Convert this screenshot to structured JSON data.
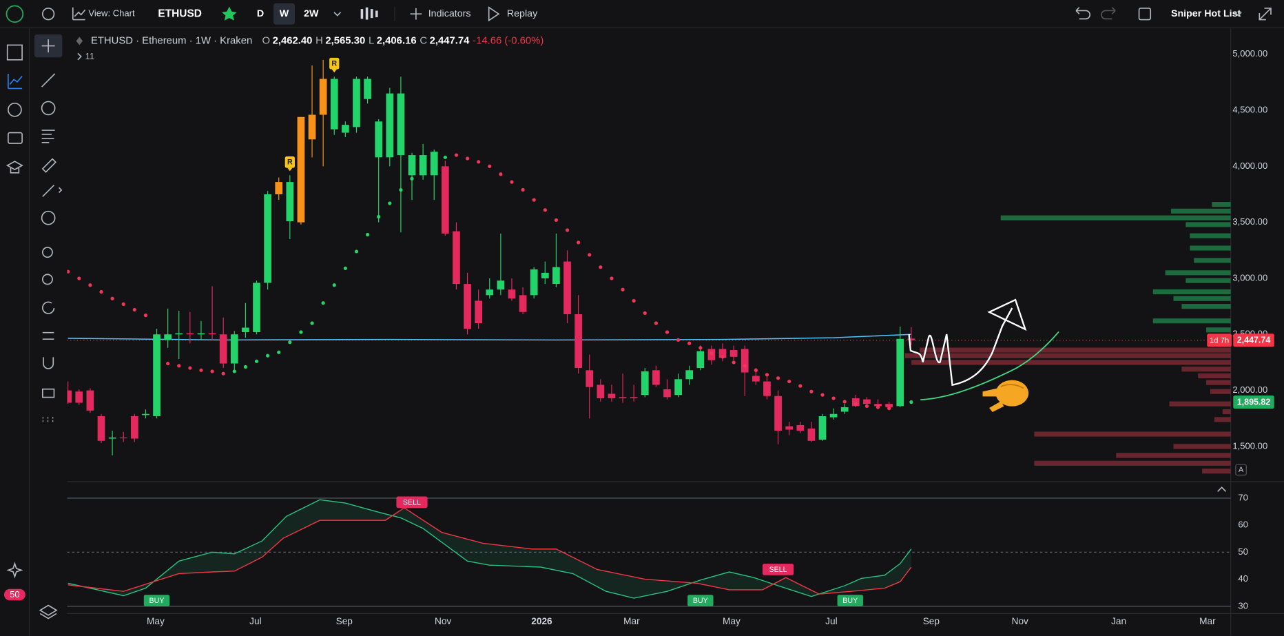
{
  "toolbar": {
    "view": "View: Chart",
    "symbol": "ETHUSD",
    "intervals": [
      "D",
      "W",
      "2W"
    ],
    "indicators": "Indicators",
    "replay": "Replay",
    "watchlist": "Sniper Hot List"
  },
  "sidebar": {
    "badge": "50"
  },
  "legend": {
    "title": "ETHUSD · Ethereum · 1W · Kraken",
    "o_label": "O",
    "o": "2,462.40",
    "h_label": "H",
    "h": "2,565.30",
    "l_label": "L",
    "l": "2,406.16",
    "c_label": "C",
    "c": "2,447.74",
    "change": "-14.66 (-0.60%)",
    "indicator_count": "11"
  },
  "chart_data": [
    {
      "type": "candlestick",
      "x": [
        1,
        2,
        3,
        4,
        5,
        6,
        7,
        8,
        9,
        10,
        11,
        12,
        13,
        14,
        15,
        16,
        17,
        18,
        19,
        20,
        21,
        22,
        23,
        24,
        25,
        26,
        27,
        28,
        29,
        30,
        31,
        32,
        33,
        34,
        35,
        36,
        37,
        38,
        39,
        40,
        41,
        42,
        43,
        44,
        45,
        46,
        47,
        48,
        49,
        50,
        51,
        52,
        53,
        54,
        55,
        56,
        57,
        58,
        59,
        60,
        61,
        62,
        63,
        64,
        65,
        66,
        67,
        68,
        69,
        70,
        71,
        72,
        73,
        74,
        75,
        76,
        77
      ],
      "open": [
        2000,
        1990,
        2000,
        1770,
        1570,
        1580,
        1770,
        1780,
        1770,
        2450,
        2500,
        2510,
        2500,
        2510,
        2500,
        2240,
        2520,
        2520,
        2960,
        3750,
        3510,
        3500,
        4240,
        4460,
        4330,
        4300,
        4350,
        4600,
        4080,
        4080,
        4100,
        3920,
        3920,
        3920,
        4000,
        3420,
        2950,
        2800,
        2850,
        2900,
        2900,
        2850,
        2850,
        3000,
        2950,
        3150,
        2680,
        2180,
        2050,
        1970,
        1940,
        1940,
        1960,
        2180,
        2010,
        1960,
        2100,
        2200,
        2370,
        2370,
        2360,
        2370,
        2130,
        2080,
        1950,
        1680,
        1690,
        1660,
        1560,
        1760,
        1810,
        1930,
        1920,
        1880,
        1880,
        1860,
        2462.4
      ],
      "high": [
        2080,
        2010,
        2020,
        1790,
        1640,
        1630,
        1790,
        1830,
        2550,
        2730,
        2710,
        2700,
        2620,
        2930,
        2650,
        2530,
        2780,
        2980,
        3780,
        3900,
        3920,
        4440,
        4900,
        4950,
        4800,
        4400,
        4800,
        4800,
        4420,
        4700,
        4800,
        4120,
        4200,
        4150,
        4050,
        3500,
        3050,
        2900,
        3000,
        3400,
        3000,
        2920,
        3100,
        3150,
        3400,
        3250,
        2850,
        2320,
        2100,
        2050,
        2150,
        2050,
        2200,
        2220,
        2100,
        2150,
        2220,
        2400,
        2400,
        2420,
        2400,
        2400,
        2200,
        2150,
        2000,
        1720,
        1720,
        1720,
        1790,
        1840,
        1880,
        1960,
        1940,
        1920,
        1900,
        2570,
        2565.3
      ],
      "low": [
        1880,
        1870,
        1800,
        1530,
        1420,
        1540,
        1540,
        1750,
        1750,
        2380,
        2280,
        2420,
        2450,
        2450,
        2200,
        2180,
        2470,
        2500,
        2900,
        3700,
        3350,
        3480,
        4080,
        4000,
        4280,
        4260,
        4300,
        4560,
        3500,
        4000,
        3410,
        3700,
        3880,
        3700,
        3380,
        2900,
        2500,
        2550,
        2820,
        2850,
        2800,
        2680,
        2820,
        2950,
        2920,
        2600,
        2150,
        1750,
        1900,
        1900,
        1890,
        1900,
        1940,
        2030,
        1920,
        1940,
        2050,
        2180,
        2230,
        2260,
        2270,
        1950,
        2050,
        1920,
        1520,
        1600,
        1620,
        1540,
        1550,
        1740,
        1790,
        1850,
        1860,
        1840,
        1830,
        1850,
        2406.16
      ],
      "close": [
        1890,
        1890,
        1820,
        1550,
        1580,
        1575,
        1570,
        1790,
        2500,
        2500,
        2510,
        2500,
        2510,
        2500,
        2240,
        2500,
        2560,
        2960,
        3750,
        3860,
        3860,
        4440,
        4460,
        4780,
        4780,
        4370,
        4780,
        4780,
        4400,
        4650,
        4650,
        4100,
        4100,
        4130,
        3400,
        2950,
        2550,
        2600,
        2900,
        2980,
        2820,
        2700,
        3080,
        3050,
        3100,
        2680,
        2200,
        2030,
        1930,
        1930,
        1930,
        1930,
        2170,
        2050,
        1940,
        2100,
        2180,
        2350,
        2270,
        2290,
        2300,
        2160,
        2080,
        1950,
        1640,
        1650,
        1640,
        1550,
        1770,
        1790,
        1850,
        1860,
        1880,
        1860,
        1850,
        2460,
        2447.74
      ],
      "up_color": "#22d46a",
      "down_color": "#e3295e",
      "highlight": {
        "color": "#f7931a",
        "indices": [
          19,
          21,
          22,
          23
        ]
      },
      "sar": [
        {
          "color": "#f23657",
          "values": [
            3060,
            3000,
            2940,
            2880,
            2820,
            2770,
            2720,
            2670,
            null,
            2240,
            2220,
            2200,
            2180,
            2170,
            2150,
            null,
            null,
            null,
            null,
            null,
            null,
            null,
            null,
            null,
            null,
            null,
            null,
            null,
            null,
            null,
            null,
            null,
            null,
            null,
            null,
            4100,
            4070,
            4040,
            4000,
            3930,
            3860,
            3790,
            3700,
            3610,
            3520,
            3430,
            3320,
            3210,
            3100,
            3000,
            2900,
            2800,
            2690,
            2600,
            2520,
            2450,
            2420,
            2380,
            2330,
            2300,
            2250,
            2220,
            2180,
            2140,
            2110,
            2080,
            2040,
            1990,
            1960,
            1930,
            1900,
            1880,
            1860,
            1850,
            1840,
            null,
            null
          ]
        },
        {
          "color": "#22d46a",
          "values": [
            null,
            null,
            null,
            null,
            null,
            null,
            null,
            null,
            null,
            null,
            null,
            null,
            null,
            null,
            null,
            2170,
            2210,
            2260,
            2310,
            2340,
            2430,
            2520,
            2600,
            2780,
            2940,
            3090,
            3240,
            3390,
            3550,
            3670,
            3790,
            3890,
            3990,
            4040,
            4080,
            null,
            null,
            null,
            null,
            null,
            null,
            null,
            null,
            null,
            null,
            null,
            null,
            null,
            null,
            null,
            null,
            null,
            null,
            null,
            null,
            null,
            null,
            null,
            null,
            null,
            null,
            null,
            null,
            null,
            null,
            null,
            null,
            null,
            null,
            null,
            null,
            null,
            null,
            null,
            null,
            null,
            1895.82
          ]
        }
      ],
      "ma": {
        "color": "#4fc3f7",
        "x": [
          1,
          15,
          30,
          45,
          60,
          70,
          77
        ],
        "values": [
          2465,
          2450,
          2455,
          2450,
          2455,
          2470,
          2500
        ]
      },
      "markers": [
        {
          "x": 21,
          "label": "R",
          "color": "#f5c518"
        },
        {
          "x": 25,
          "label": "R",
          "color": "#f5c518"
        }
      ],
      "volume_profile": [
        {
          "price": 3660,
          "value": 23,
          "color": "#1f7a45"
        },
        {
          "price": 3600,
          "value": 73,
          "color": "#1f7a45"
        },
        {
          "price": 3540,
          "value": 281,
          "color": "#1f7a45"
        },
        {
          "price": 3480,
          "value": 55,
          "color": "#1f7a45"
        },
        {
          "price": 3380,
          "value": 50,
          "color": "#1f7a45"
        },
        {
          "price": 3270,
          "value": 50,
          "color": "#1f7a45"
        },
        {
          "price": 3160,
          "value": 45,
          "color": "#1f7a45"
        },
        {
          "price": 3050,
          "value": 80,
          "color": "#1f7a45"
        },
        {
          "price": 2980,
          "value": 55,
          "color": "#1f7a45"
        },
        {
          "price": 2880,
          "value": 95,
          "color": "#1f7a45"
        },
        {
          "price": 2820,
          "value": 70,
          "color": "#1f7a45"
        },
        {
          "price": 2750,
          "value": 60,
          "color": "#1f7a45"
        },
        {
          "price": 2620,
          "value": 95,
          "color": "#1f7a45"
        },
        {
          "price": 2540,
          "value": 30,
          "color": "#1f7a45"
        },
        {
          "price": 2360,
          "value": 380,
          "color": "#7a2a33"
        },
        {
          "price": 2310,
          "value": 398,
          "color": "#7a2a33"
        },
        {
          "price": 2250,
          "value": 390,
          "color": "#7a2a33"
        },
        {
          "price": 2190,
          "value": 60,
          "color": "#7a2a33"
        },
        {
          "price": 2130,
          "value": 40,
          "color": "#7a2a33"
        },
        {
          "price": 2070,
          "value": 30,
          "color": "#7a2a33"
        },
        {
          "price": 1990,
          "value": 25,
          "color": "#7a2a33"
        },
        {
          "price": 1880,
          "value": 75,
          "color": "#7a2a33"
        },
        {
          "price": 1810,
          "value": 10,
          "color": "#7a2a33"
        },
        {
          "price": 1740,
          "value": 20,
          "color": "#7a2a33"
        },
        {
          "price": 1610,
          "value": 240,
          "color": "#7a2a33"
        },
        {
          "price": 1500,
          "value": 70,
          "color": "#7a2a33"
        },
        {
          "price": 1420,
          "value": 140,
          "color": "#7a2a33"
        },
        {
          "price": 1350,
          "value": 240,
          "color": "#7a2a33"
        },
        {
          "price": 1280,
          "value": 35,
          "color": "#7a2a33"
        }
      ],
      "price_tags": [
        {
          "value": 2447.74,
          "label": "2,447.74",
          "color": "#f23645"
        },
        {
          "value": 1895.82,
          "label": "1,895.82",
          "color": "#22ab5e"
        }
      ],
      "countdown": "1d 7h",
      "scale_mode": "A",
      "xlim": [
        0,
        106
      ],
      "ylim": [
        1193,
        5228
      ],
      "xticks": [
        {
          "value": 8.9,
          "label": "May"
        },
        {
          "value": 17.9,
          "label": "Jul"
        },
        {
          "value": 25.9,
          "label": "Sep"
        },
        {
          "value": 34.8,
          "label": "Nov"
        },
        {
          "value": 43.7,
          "label": "2026"
        },
        {
          "value": 51.8,
          "label": "Mar"
        },
        {
          "value": 60.8,
          "label": "May"
        },
        {
          "value": 69.8,
          "label": "Jul"
        },
        {
          "value": 78.8,
          "label": "Sep"
        },
        {
          "value": 86.8,
          "label": "Nov"
        },
        {
          "value": 95.7,
          "label": "Jan"
        },
        {
          "value": 103.7,
          "label": "Mar"
        }
      ],
      "yticks": [
        {
          "value": 1500,
          "label": "1,500.00"
        },
        {
          "value": 2000,
          "label": "2,000.00"
        },
        {
          "value": 2500,
          "label": "2,500.00"
        },
        {
          "value": 3000,
          "label": "3,000.00"
        },
        {
          "value": 3500,
          "label": "3,500.00"
        },
        {
          "value": 4000,
          "label": "4,000.00"
        },
        {
          "value": 4500,
          "label": "4,500.00"
        },
        {
          "value": 5000,
          "label": "5,000.00"
        }
      ]
    },
    {
      "type": "line",
      "series": [
        {
          "color": "#26c281",
          "x": [
            1,
            6,
            8,
            11,
            14,
            16,
            18.5,
            20.7,
            23.7,
            26,
            29,
            31,
            33,
            37,
            39,
            43.6,
            46.5,
            49.5,
            52,
            55,
            58,
            60.6,
            62.8,
            65,
            68,
            71,
            72.5,
            74.6,
            76,
            77
          ],
          "values": [
            38.5,
            33.9,
            36.7,
            46.7,
            50,
            49.4,
            54.2,
            63.3,
            69.4,
            68.2,
            64.8,
            62.7,
            58.8,
            46.7,
            45.2,
            44.5,
            42.1,
            35.5,
            33,
            35.5,
            39.7,
            42.7,
            40.6,
            37.6,
            33.6,
            37.6,
            40.3,
            41.5,
            45.8,
            51.2
          ]
        },
        {
          "color": "#f23645",
          "x": [
            1,
            6,
            11,
            14,
            16,
            18.5,
            20.4,
            23.7,
            29.6,
            31.3,
            34.7,
            38.4,
            42.8,
            45,
            48.7,
            53,
            57.7,
            60.6,
            63.6,
            65.7,
            68.7,
            71.6,
            74.6,
            76,
            77
          ],
          "values": [
            37.9,
            35.5,
            42.1,
            42.7,
            43,
            48.2,
            55.2,
            61.8,
            61.8,
            66.4,
            57.3,
            53.3,
            51.2,
            51.2,
            43.6,
            40,
            38.5,
            36.1,
            36.1,
            40.6,
            34.5,
            35.5,
            36.7,
            39.1,
            44.5
          ]
        }
      ],
      "signals": [
        {
          "x": 9,
          "value": 32.1,
          "label": "BUY",
          "color": "#22ab5e"
        },
        {
          "x": 32,
          "value": 68.5,
          "label": "SELL",
          "color": "#e3295e"
        },
        {
          "x": 58,
          "value": 32.1,
          "label": "BUY",
          "color": "#22ab5e"
        },
        {
          "x": 65,
          "value": 43.6,
          "label": "SELL",
          "color": "#e3295e"
        },
        {
          "x": 71.5,
          "value": 32.1,
          "label": "BUY",
          "color": "#22ab5e"
        }
      ],
      "levels": [
        {
          "value": 70,
          "style": "solid"
        },
        {
          "value": 50,
          "style": "dashed"
        },
        {
          "value": 30,
          "style": "solid"
        }
      ],
      "xlim": [
        0,
        106
      ],
      "ylim": [
        27.6,
        75.5
      ],
      "yticks": [
        30,
        40,
        50,
        60,
        70
      ]
    }
  ]
}
